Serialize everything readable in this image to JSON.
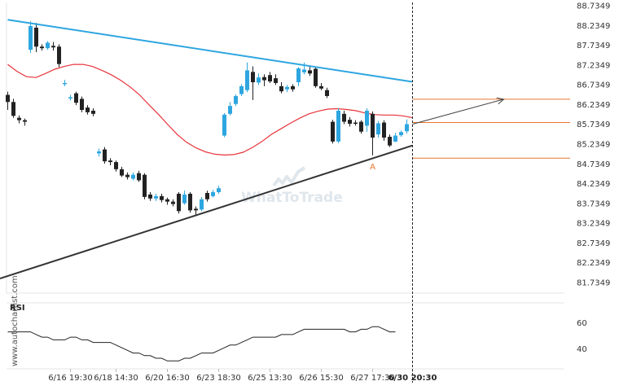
{
  "chart_data": [
    {
      "type": "candlestick",
      "y_ticks": [
        "88.7349",
        "88.2349",
        "87.7349",
        "87.2349",
        "86.7349",
        "86.2349",
        "85.7349",
        "85.2349",
        "84.7349",
        "84.2349",
        "83.7349",
        "83.2349",
        "82.7349",
        "82.2349",
        "81.7349"
      ],
      "ylim": [
        81.4,
        88.8
      ],
      "x_ticks": [
        {
          "label": "6/16 19:30",
          "at": 11
        },
        {
          "label": "6/18 14:30",
          "at": 19
        },
        {
          "label": "6/20 16:30",
          "at": 28
        },
        {
          "label": "6/23 18:30",
          "at": 37
        },
        {
          "label": "6/25 13:30",
          "at": 46
        },
        {
          "label": "6/26 15:30",
          "at": 55
        },
        {
          "label": "6/27 17:30",
          "at": 64
        },
        {
          "label": "6/30 20:30",
          "at": 71,
          "bold": true
        }
      ],
      "candles": [
        [
          86.48,
          86.3,
          86.56,
          86.1
        ],
        [
          86.3,
          85.95,
          86.38,
          85.9
        ],
        [
          85.9,
          85.84,
          85.96,
          85.76
        ],
        [
          85.84,
          85.8,
          85.88,
          85.7
        ],
        [
          87.62,
          88.22,
          88.34,
          87.54
        ],
        [
          88.18,
          87.7,
          88.3,
          87.56
        ],
        [
          87.7,
          87.66,
          87.76,
          87.6
        ],
        [
          87.66,
          87.8,
          87.84,
          87.62
        ],
        [
          87.72,
          87.68,
          87.82,
          87.6
        ],
        [
          87.7,
          87.26,
          87.76,
          87.18
        ],
        [
          86.78,
          86.78,
          86.86,
          86.7
        ],
        [
          86.4,
          86.42,
          86.48,
          86.34
        ],
        [
          86.52,
          86.28,
          86.56,
          86.22
        ],
        [
          86.38,
          86.1,
          86.44,
          86.04
        ],
        [
          86.16,
          86.04,
          86.22,
          85.98
        ],
        [
          86.08,
          86.0,
          86.14,
          85.94
        ],
        [
          85.0,
          85.05,
          85.12,
          84.92
        ],
        [
          85.1,
          84.8,
          85.16,
          84.74
        ],
        [
          84.82,
          84.78,
          84.88,
          84.7
        ],
        [
          84.78,
          84.6,
          84.82,
          84.54
        ],
        [
          84.6,
          84.44,
          84.66,
          84.4
        ],
        [
          84.46,
          84.4,
          84.52,
          84.34
        ],
        [
          84.36,
          84.46,
          84.52,
          84.32
        ],
        [
          84.5,
          84.32,
          84.56,
          84.28
        ],
        [
          84.46,
          83.9,
          84.5,
          83.84
        ],
        [
          83.96,
          83.86,
          84.02,
          83.8
        ],
        [
          83.86,
          83.92,
          83.98,
          83.8
        ],
        [
          83.92,
          83.82,
          83.98,
          83.76
        ],
        [
          83.84,
          83.78,
          83.88,
          83.7
        ],
        [
          83.78,
          83.72,
          83.84,
          83.66
        ],
        [
          83.98,
          83.54,
          84.02,
          83.48
        ],
        [
          83.74,
          83.96,
          84.06,
          83.7
        ],
        [
          83.98,
          83.56,
          84.02,
          83.5
        ],
        [
          83.6,
          83.56,
          83.66,
          83.44
        ],
        [
          83.58,
          83.84,
          83.9,
          83.54
        ],
        [
          84.0,
          83.84,
          84.06,
          83.78
        ],
        [
          83.92,
          84.02,
          84.08,
          83.88
        ],
        [
          84.02,
          84.12,
          84.18,
          83.98
        ],
        [
          85.45,
          85.98,
          86.02,
          85.41
        ],
        [
          86.0,
          86.2,
          86.3,
          85.96
        ],
        [
          86.25,
          86.45,
          86.49,
          86.2
        ],
        [
          86.5,
          86.7,
          86.75,
          86.45
        ],
        [
          86.6,
          87.1,
          87.3,
          86.55
        ],
        [
          87.06,
          86.8,
          87.2,
          86.35
        ],
        [
          86.79,
          86.92,
          87.02,
          86.73
        ],
        [
          86.93,
          86.85,
          87.0,
          86.7
        ],
        [
          86.98,
          86.82,
          87.06,
          86.78
        ],
        [
          86.9,
          86.78,
          87.0,
          86.73
        ],
        [
          86.7,
          86.57,
          86.8,
          86.52
        ],
        [
          86.62,
          86.68,
          86.73,
          86.55
        ],
        [
          86.7,
          86.62,
          86.75,
          86.56
        ],
        [
          86.8,
          87.15,
          87.18,
          86.7
        ],
        [
          87.05,
          87.12,
          87.3,
          87.0
        ],
        [
          87.1,
          87.02,
          87.22,
          86.96
        ],
        [
          87.14,
          86.7,
          87.18,
          86.66
        ],
        [
          86.7,
          86.64,
          86.78,
          86.6
        ],
        [
          86.6,
          86.45,
          86.66,
          86.4
        ],
        [
          85.8,
          85.3,
          85.85,
          85.25
        ],
        [
          85.3,
          86.08,
          86.14,
          85.26
        ],
        [
          86.0,
          85.8,
          86.08,
          85.74
        ],
        [
          85.85,
          85.75,
          85.92,
          85.68
        ],
        [
          85.78,
          85.76,
          85.84,
          85.7
        ],
        [
          85.8,
          85.55,
          85.84,
          85.5
        ],
        [
          85.7,
          86.08,
          86.14,
          85.55
        ],
        [
          86.0,
          85.4,
          86.06,
          84.95
        ],
        [
          85.48,
          85.76,
          85.82,
          85.4
        ],
        [
          85.78,
          85.4,
          85.84,
          85.32
        ],
        [
          85.42,
          85.2,
          85.48,
          85.16
        ],
        [
          85.3,
          85.45,
          85.52,
          85.28
        ],
        [
          85.46,
          85.54,
          85.58,
          85.42
        ],
        [
          85.56,
          85.74,
          85.86,
          85.5
        ]
      ],
      "ma": [
        87.25,
        87.07,
        86.94,
        86.92,
        87.02,
        87.13,
        87.2,
        87.25,
        87.25,
        87.2,
        87.1,
        86.99,
        86.85,
        86.68,
        86.48,
        86.23,
        85.99,
        85.73,
        85.48,
        85.28,
        85.14,
        85.04,
        84.98,
        84.96,
        84.97,
        85.03,
        85.15,
        85.3,
        85.48,
        85.62,
        85.76,
        85.89,
        86.0,
        86.07,
        86.12,
        86.13,
        86.11,
        86.08,
        86.02,
        85.98,
        85.97,
        85.97,
        85.95,
        85.9
      ],
      "resistance": {
        "from": [
          0,
          88.38
        ],
        "to": [
          71,
          86.81
        ]
      },
      "support": {
        "from": [
          0,
          81.77
        ],
        "to": [
          71,
          85.2
        ]
      },
      "horizontal_levels": [
        86.37,
        85.78,
        84.88
      ],
      "projection": {
        "from": [
          71,
          85.74
        ],
        "to": [
          87,
          86.37
        ]
      },
      "marker": {
        "label": "A",
        "at": [
          64,
          84.88
        ]
      },
      "current_time_index": 71
    },
    {
      "type": "line",
      "name": "RSI",
      "y_ticks": [
        "60",
        "40"
      ],
      "ylim": [
        25,
        75
      ],
      "values": [
        53,
        53,
        53,
        53,
        53,
        51,
        49,
        49,
        47,
        47,
        47,
        49,
        49,
        47,
        47,
        45,
        45,
        45,
        45,
        43,
        41,
        39,
        37,
        37,
        35,
        35,
        33,
        33,
        31,
        31,
        31,
        33,
        33,
        35,
        37,
        37,
        37,
        39,
        41,
        43,
        43,
        45,
        47,
        49,
        49,
        49,
        49,
        49,
        51,
        51,
        51,
        53,
        55,
        55,
        55,
        55,
        55,
        55,
        55,
        55,
        53,
        53,
        55,
        55,
        57,
        57,
        55,
        53,
        53
      ]
    }
  ],
  "watermark": "WhatToTrade",
  "side_caption": "www.autochartist.com"
}
